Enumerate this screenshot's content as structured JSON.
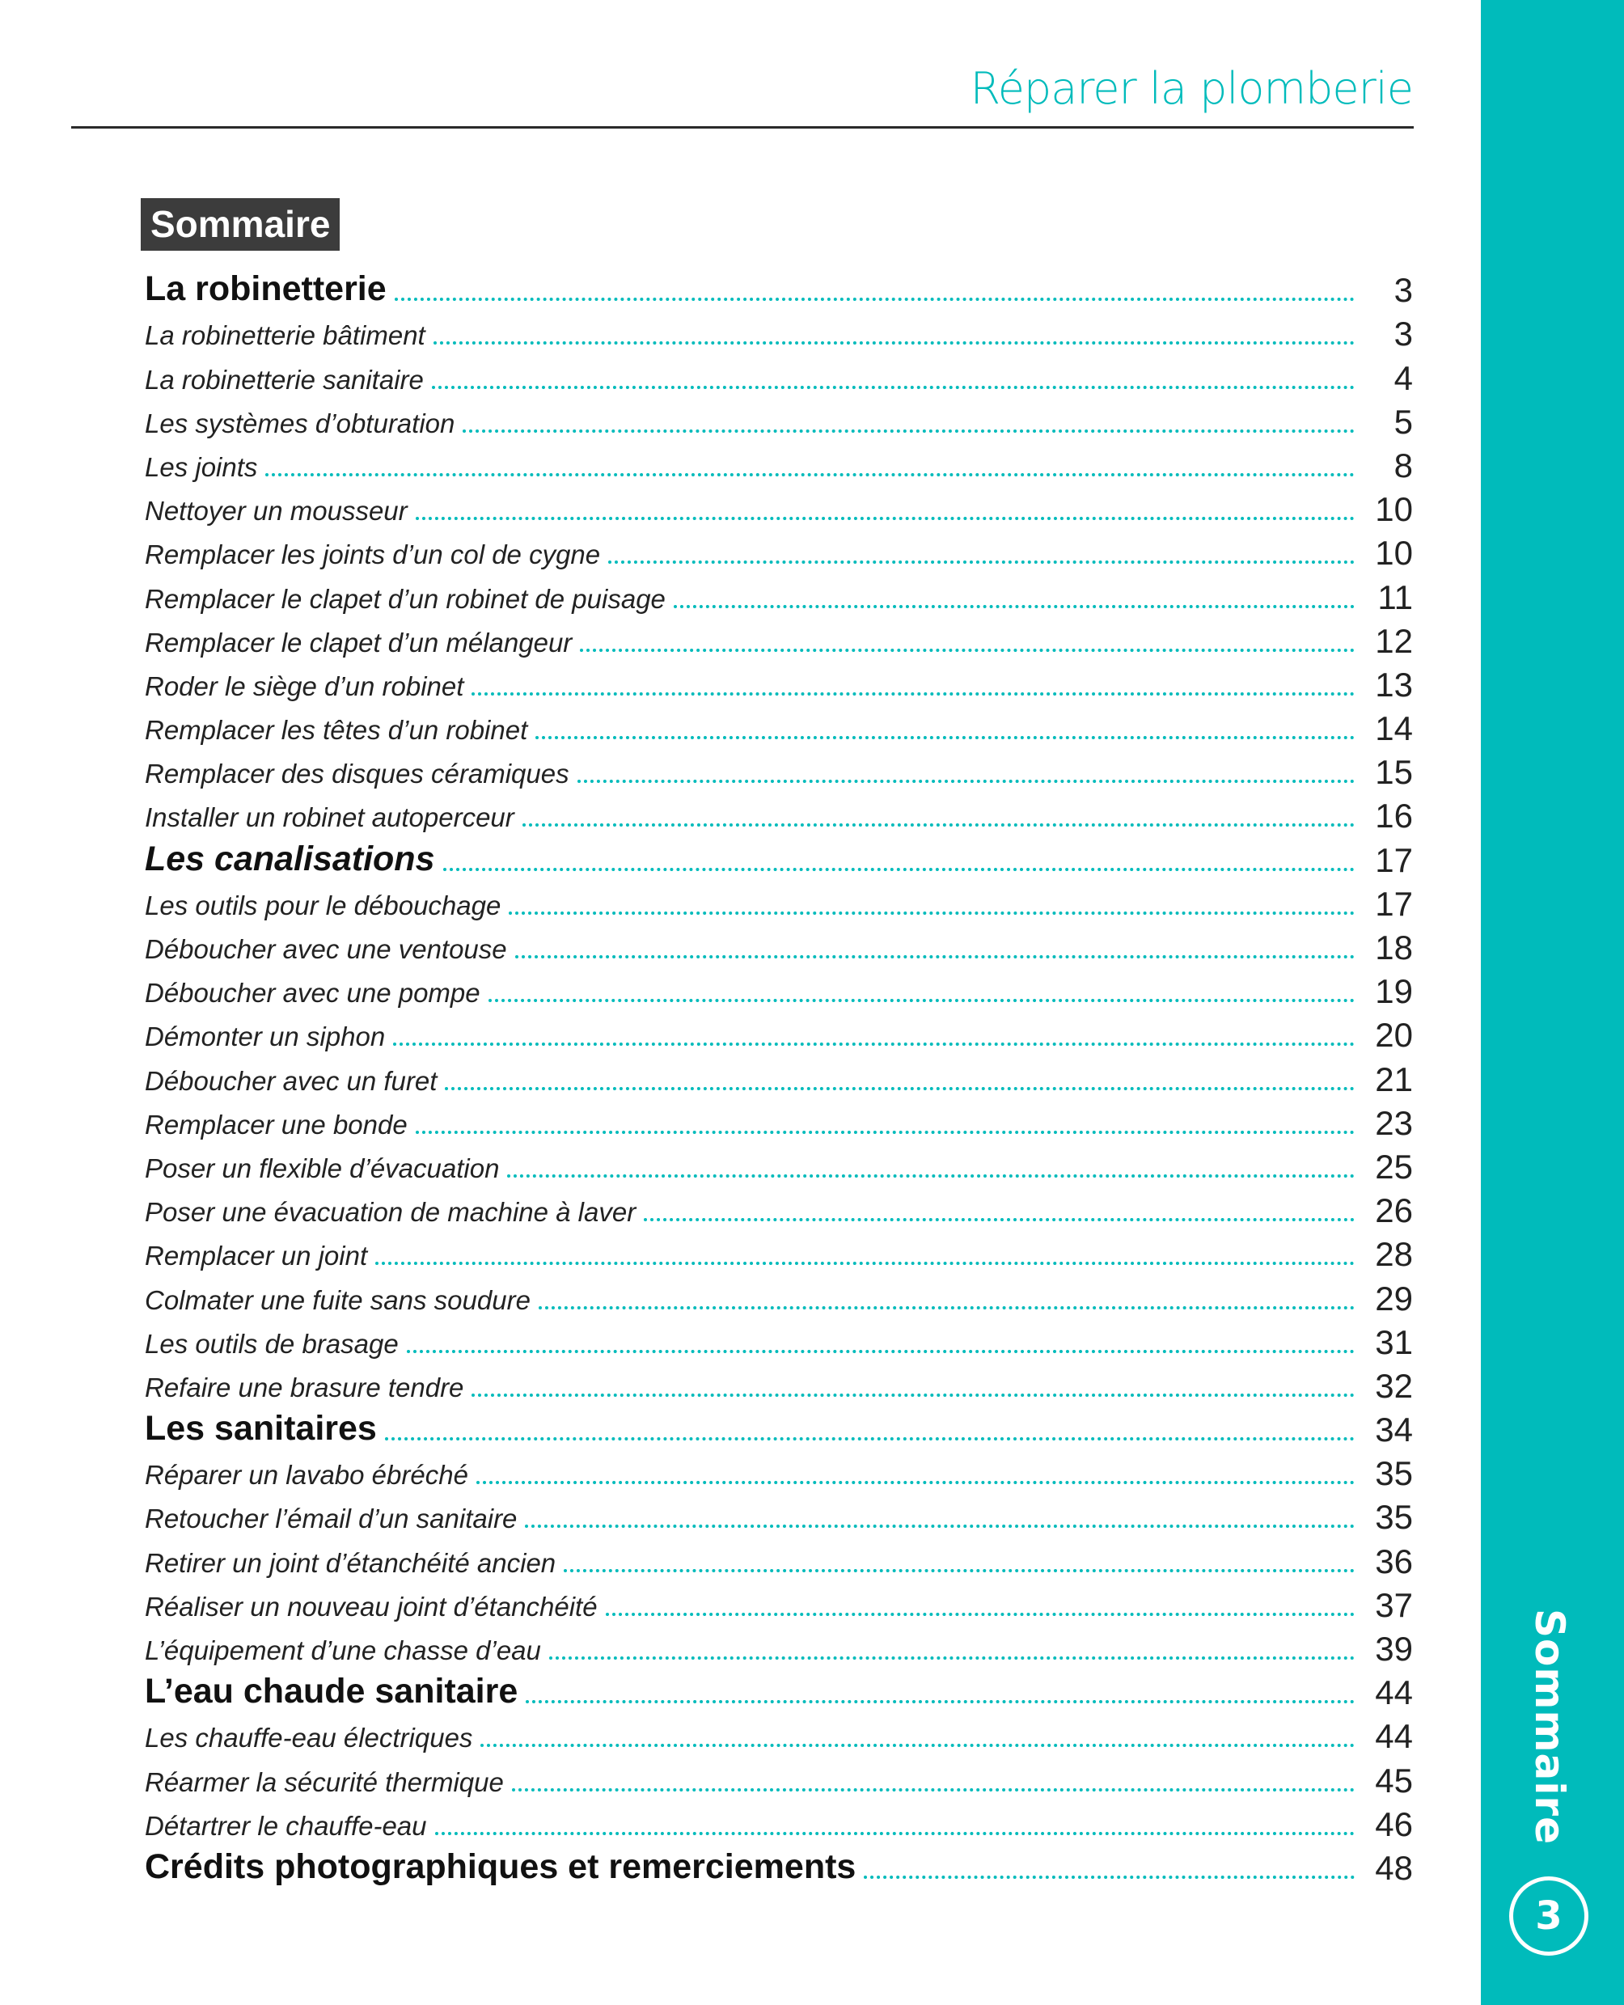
{
  "header": {
    "title": "Réparer la plomberie"
  },
  "badge": "Sommaire",
  "sidebar": {
    "label": "Sommaire",
    "page_number": "3",
    "color": "#00bbbb"
  },
  "toc": [
    {
      "label": "La robinetterie",
      "page": "3",
      "level": 1
    },
    {
      "label": "La robinetterie bâtiment",
      "page": "3",
      "level": 2
    },
    {
      "label": "La robinetterie sanitaire",
      "page": "4",
      "level": 2
    },
    {
      "label": "Les systèmes d’obturation",
      "page": "5",
      "level": 2
    },
    {
      "label": "Les joints",
      "page": "8",
      "level": 2
    },
    {
      "label": "Nettoyer un mousseur",
      "page": "10",
      "level": 2
    },
    {
      "label": "Remplacer les joints d’un col de cygne",
      "page": "10",
      "level": 2
    },
    {
      "label": "Remplacer le clapet d’un robinet de puisage",
      "page": "11",
      "level": 2
    },
    {
      "label": "Remplacer le clapet d’un mélangeur",
      "page": "12",
      "level": 2
    },
    {
      "label": "Roder le siège d’un robinet",
      "page": "13",
      "level": 2
    },
    {
      "label": "Remplacer les têtes d’un robinet",
      "page": "14",
      "level": 2
    },
    {
      "label": "Remplacer des disques céramiques",
      "page": "15",
      "level": 2
    },
    {
      "label": "Installer un robinet autoperceur",
      "page": "16",
      "level": 2
    },
    {
      "label": "Les canalisations",
      "page": "17",
      "level": 1,
      "italic": true
    },
    {
      "label": "Les outils pour le débouchage",
      "page": "17",
      "level": 2
    },
    {
      "label": "Déboucher avec une ventouse",
      "page": "18",
      "level": 2
    },
    {
      "label": "Déboucher avec une pompe",
      "page": "19",
      "level": 2
    },
    {
      "label": "Démonter un siphon",
      "page": "20",
      "level": 2
    },
    {
      "label": "Déboucher avec un furet",
      "page": "21",
      "level": 2
    },
    {
      "label": "Remplacer une bonde",
      "page": "23",
      "level": 2
    },
    {
      "label": "Poser un flexible d’évacuation",
      "page": "25",
      "level": 2
    },
    {
      "label": "Poser une évacuation de machine à laver",
      "page": "26",
      "level": 2
    },
    {
      "label": "Remplacer un joint",
      "page": "28",
      "level": 2
    },
    {
      "label": "Colmater une fuite sans soudure",
      "page": "29",
      "level": 2
    },
    {
      "label": "Les outils de brasage",
      "page": "31",
      "level": 2
    },
    {
      "label": "Refaire une brasure tendre",
      "page": "32",
      "level": 2
    },
    {
      "label": "Les sanitaires",
      "page": "34",
      "level": 1
    },
    {
      "label": "Réparer un lavabo ébréché",
      "page": "35",
      "level": 2
    },
    {
      "label": "Retoucher l’émail d’un sanitaire",
      "page": "35",
      "level": 2
    },
    {
      "label": "Retirer un joint d’étanchéité ancien",
      "page": "36",
      "level": 2
    },
    {
      "label": "Réaliser un nouveau joint d’étanchéité",
      "page": "37",
      "level": 2
    },
    {
      "label": "L’équipement d’une chasse d’eau",
      "page": "39",
      "level": 2
    },
    {
      "label": "L’eau chaude sanitaire",
      "page": "44",
      "level": 1
    },
    {
      "label": "Les chauffe-eau électriques",
      "page": "44",
      "level": 2
    },
    {
      "label": "Réarmer la sécurité thermique",
      "page": "45",
      "level": 2
    },
    {
      "label": "Détartrer le chauffe-eau",
      "page": "46",
      "level": 2
    },
    {
      "label": "Crédits photographiques et remerciements",
      "page": "48",
      "level": 1
    }
  ]
}
